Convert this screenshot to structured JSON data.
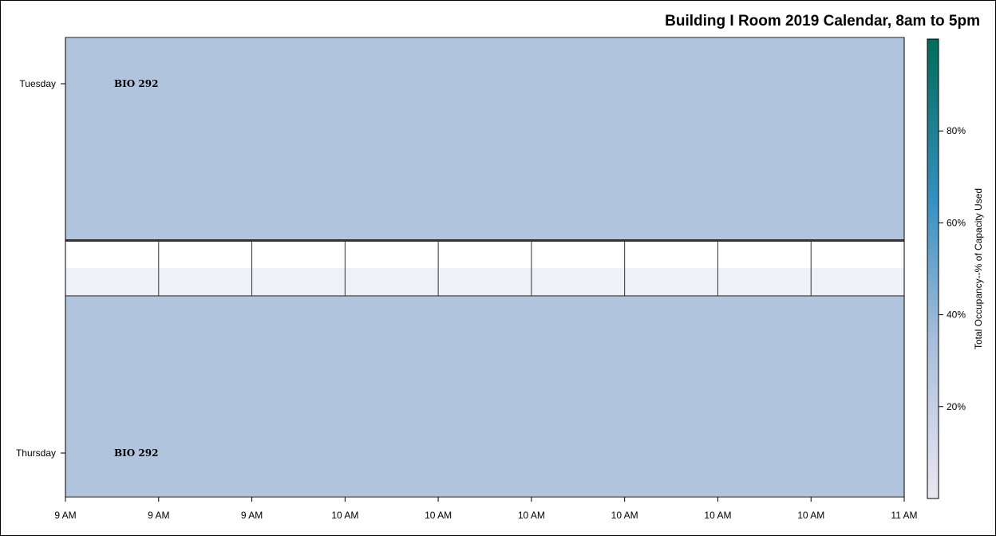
{
  "chart_data": {
    "type": "heatmap",
    "title": "Building I Room 2019 Calendar, 8am to 5pm",
    "days": [
      "Tuesday",
      "Thursday"
    ],
    "x_tick_labels": [
      "9 AM",
      "9 AM",
      "9 AM",
      "10 AM",
      "10 AM",
      "10 AM",
      "10 AM",
      "10 AM",
      "10 AM",
      "11 AM"
    ],
    "blocks": [
      {
        "day": "Tuesday",
        "course": "BIO 292",
        "occupancy_pct": 35
      },
      {
        "day": "Thursday",
        "course": "BIO 292",
        "occupancy_pct": 35
      }
    ],
    "colorbar": {
      "label": "Total Occupancy--% of Capacity Used",
      "tick_values": [
        20,
        40,
        60,
        80
      ],
      "tick_labels": [
        "20%",
        "40%",
        "60%",
        "80%"
      ],
      "range": [
        0,
        100
      ],
      "colors": [
        "#ece7f2",
        "#a6bddb",
        "#3690c0",
        "#016c59"
      ]
    },
    "block_color": "#b0c4de",
    "empty_row_colors": [
      "#ffffff",
      "#eef1f8"
    ]
  }
}
